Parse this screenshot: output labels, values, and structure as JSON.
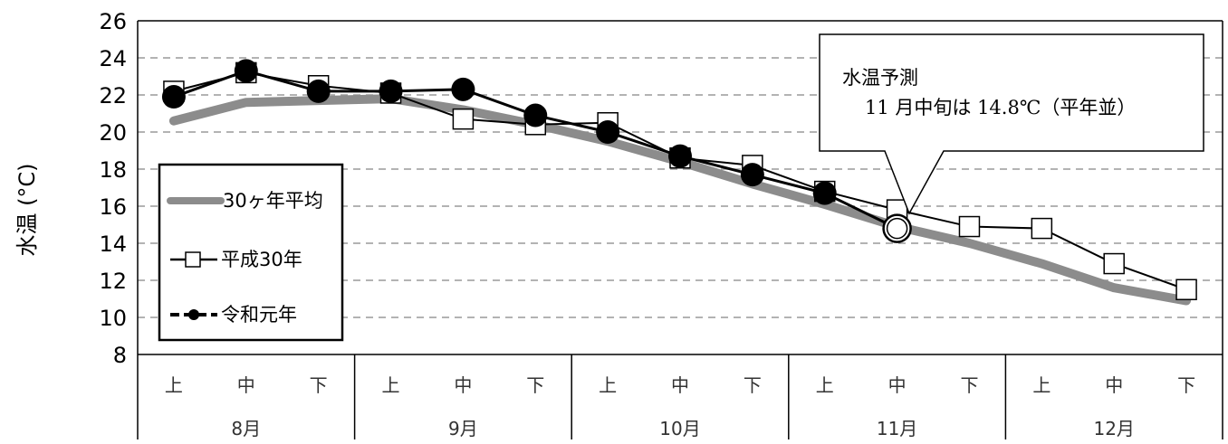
{
  "chart_data": {
    "type": "line",
    "ylabel": "水温 (°C)",
    "ylim": [
      8,
      26
    ],
    "yticks": [
      "8",
      "10",
      "12",
      "14",
      "16",
      "18",
      "20",
      "22",
      "24",
      "26"
    ],
    "grid": "horizontal dashed",
    "categories": [
      "上",
      "中",
      "下",
      "上",
      "中",
      "下",
      "上",
      "中",
      "下",
      "上",
      "中",
      "下",
      "上",
      "中",
      "下"
    ],
    "months": [
      "8月",
      "9月",
      "10月",
      "11月",
      "12月"
    ],
    "legend_position": "lower-left",
    "series": [
      {
        "name": "30ヶ年平均",
        "color": "#8c8c8c",
        "style": "thick line",
        "values": [
          20.6,
          21.6,
          21.7,
          21.8,
          21.2,
          20.4,
          19.5,
          18.4,
          17.2,
          16.1,
          14.9,
          14.0,
          12.9,
          11.6,
          10.9
        ]
      },
      {
        "name": "平成30年",
        "color": "#000000",
        "style": "line with open square markers",
        "values": [
          22.2,
          23.2,
          22.5,
          22.1,
          20.7,
          20.4,
          20.5,
          18.6,
          18.2,
          16.8,
          15.8,
          14.9,
          14.8,
          12.9,
          11.5
        ]
      },
      {
        "name": "令和元年",
        "color": "#000000",
        "style": "line with filled circle markers",
        "values": [
          21.9,
          23.3,
          22.2,
          22.2,
          22.3,
          20.9,
          20.0,
          18.7,
          17.7,
          16.7,
          14.8,
          null,
          null,
          null,
          null
        ]
      }
    ],
    "forecast": {
      "category_index": 10,
      "value": 14.8
    },
    "annotation": {
      "line1": "水温予測",
      "line2": "11 月中旬は 14.8℃（平年並）"
    }
  }
}
